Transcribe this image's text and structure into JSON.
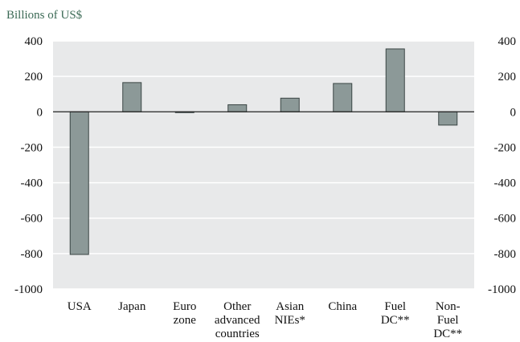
{
  "chart_data": {
    "type": "bar",
    "unit_label": "Billions of US$",
    "categories": [
      [
        "USA"
      ],
      [
        "Japan"
      ],
      [
        "Euro",
        "zone"
      ],
      [
        "Other",
        "advanced",
        "countries"
      ],
      [
        "Asian",
        "NIEs*"
      ],
      [
        "China"
      ],
      [
        "Fuel",
        "DC**"
      ],
      [
        "Non-",
        "Fuel",
        "DC**"
      ]
    ],
    "values": [
      -805,
      165,
      0,
      40,
      77,
      160,
      355,
      -75
    ],
    "ylim": [
      -1000,
      400
    ],
    "yticks": [
      "400",
      "200",
      "0",
      "-200",
      "-400",
      "-600",
      "-800",
      "-1000"
    ],
    "ytick_values": [
      400,
      200,
      0,
      -200,
      -400,
      -600,
      -800,
      -1000
    ],
    "grid": true,
    "colors": {
      "plot_background": "#e8e9ea",
      "grid": "#ffffff",
      "bar_fill": "#8c9998",
      "bar_stroke": "#3a4544",
      "zero_line": "#222222",
      "unit_label": "#3b6a55"
    }
  }
}
